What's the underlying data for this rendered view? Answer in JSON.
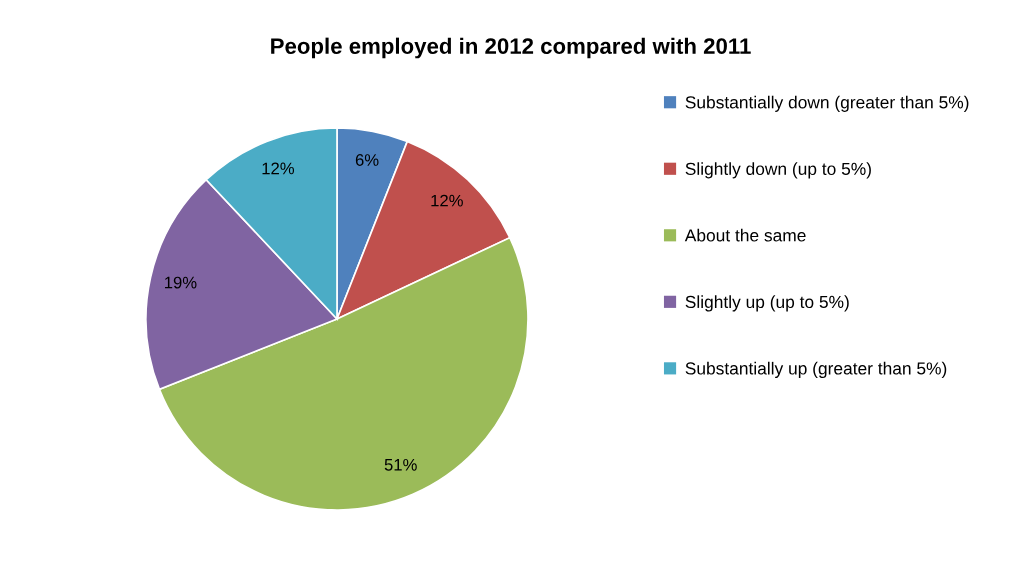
{
  "chart_data": {
    "type": "pie",
    "title": "People employed in 2012 compared with 2011",
    "categories": [
      "Substantially down (greater than 5%)",
      "Slightly down (up to 5%)",
      "About the same",
      "Slightly up (up to 5%)",
      "Substantially up (greater than 5%)"
    ],
    "values": [
      6,
      12,
      51,
      19,
      12
    ],
    "value_labels": [
      "6%",
      "12%",
      "51%",
      "19%",
      "12%"
    ],
    "colors": [
      "#4f81bd",
      "#c0504d",
      "#9bbb59",
      "#8064a2",
      "#4bacc6"
    ],
    "legend": "right"
  }
}
